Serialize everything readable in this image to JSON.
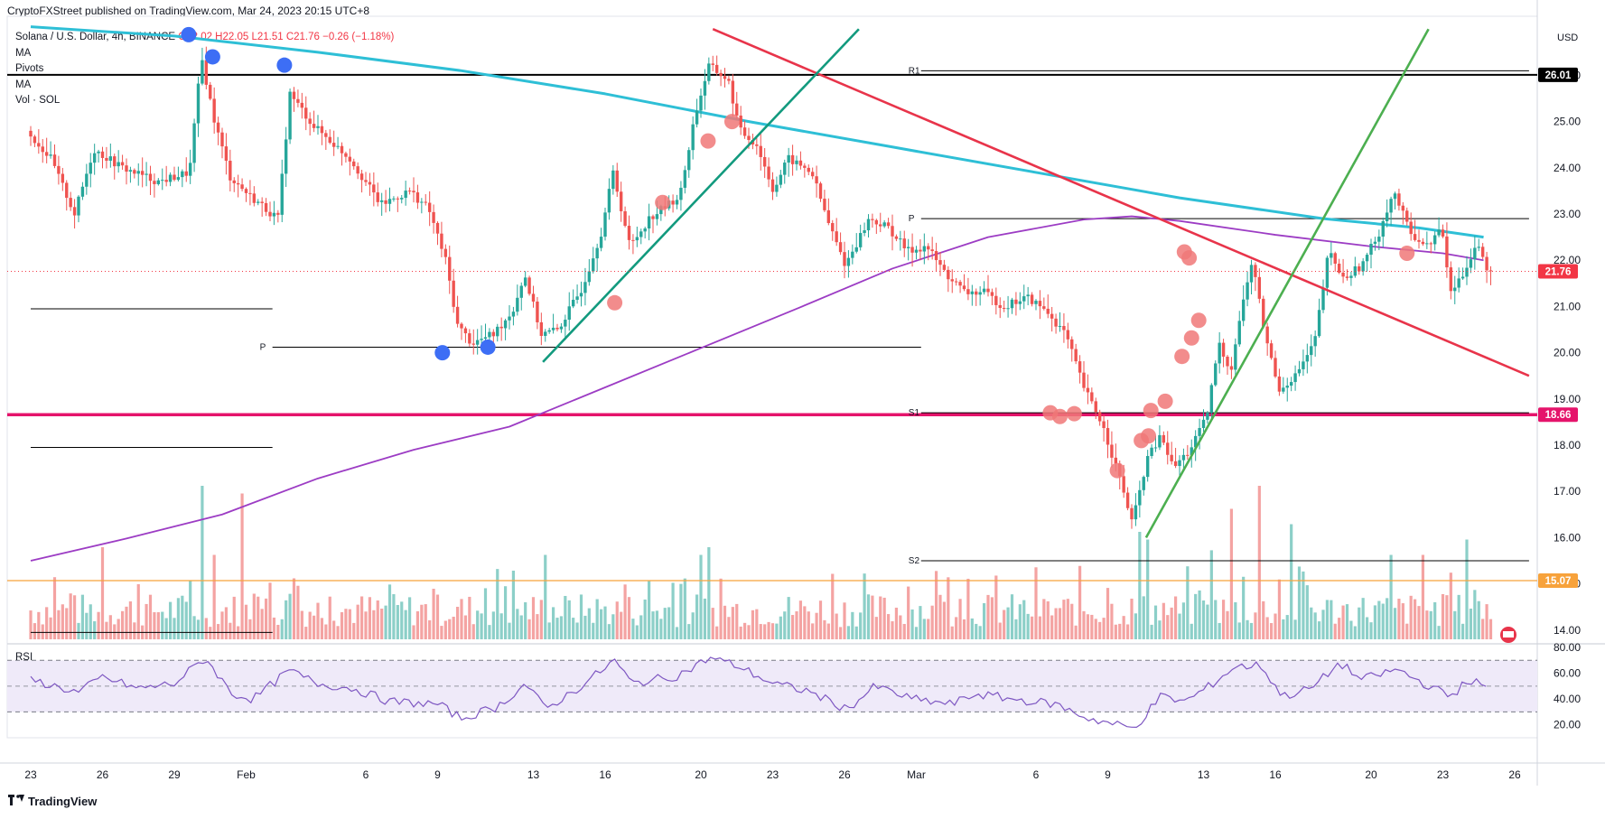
{
  "header": {
    "publisher": "CryptoFXStreet published on TradingView.com, Mar 24, 2023 20:15 UTC+8"
  },
  "legend": {
    "symbol": "Solana / U.S. Dollar, 4h, BINANCE",
    "ohlc": "O22.02  H22.05  L21.51  C21.76  −0.26 (−1.18%)",
    "indicators": [
      "MA",
      "Pivots",
      "MA",
      "Vol · SOL"
    ]
  },
  "branding": {
    "logo_text": "TradingView"
  },
  "colors": {
    "up": "#26a69a",
    "down": "#ef5350",
    "vol_up": "#8ccfc8",
    "vol_down": "#f4a3a2",
    "ma_cyan": "#2ebfd6",
    "ma_purple": "#9c3cc4",
    "trend_red": "#e8344a",
    "trend_green_teal": "#129a7e",
    "trend_green": "#4caf50",
    "support_magenta": "#e5146b",
    "level_orange": "#f7a23b",
    "marker_blue": "#3d6ef5",
    "marker_red": "#f07878",
    "rsi_line": "#7e57c2",
    "rsi_band": "#efeaf9"
  },
  "chart_data": {
    "type": "candlestick",
    "interval": "4h",
    "currency": "USD",
    "last_price": 21.76,
    "ylim": [
      13.8,
      27.2
    ],
    "y_ticks": [
      14,
      15,
      16,
      17,
      18,
      19,
      20,
      21,
      22,
      23,
      24,
      25,
      26
    ],
    "x_ticks": [
      {
        "label": "23",
        "t": 0
      },
      {
        "label": "26",
        "t": 3
      },
      {
        "label": "29",
        "t": 6
      },
      {
        "label": "Feb",
        "t": 9
      },
      {
        "label": "6",
        "t": 14
      },
      {
        "label": "9",
        "t": 17
      },
      {
        "label": "13",
        "t": 21
      },
      {
        "label": "16",
        "t": 24
      },
      {
        "label": "20",
        "t": 28
      },
      {
        "label": "23",
        "t": 31
      },
      {
        "label": "26",
        "t": 34
      },
      {
        "label": "Mar",
        "t": 37
      },
      {
        "label": "6",
        "t": 42
      },
      {
        "label": "9",
        "t": 45
      },
      {
        "label": "13",
        "t": 49
      },
      {
        "label": "16",
        "t": 52
      },
      {
        "label": "20",
        "t": 56
      },
      {
        "label": "23",
        "t": 59
      },
      {
        "label": "26",
        "t": 62
      }
    ],
    "price_labels": [
      {
        "value": 26.01,
        "text": "26.01",
        "color": "#000000"
      },
      {
        "value": 21.76,
        "text": "21.76",
        "color": "#f23645"
      },
      {
        "value": 18.66,
        "text": "18.66",
        "color": "#e5146b"
      },
      {
        "value": 15.07,
        "text": "15.07",
        "color": "#f7a23b"
      }
    ],
    "horizontal_levels": [
      {
        "value": 26.01,
        "color": "#000000",
        "width": 2
      },
      {
        "value": 18.66,
        "color": "#e5146b",
        "width": 3.5
      },
      {
        "value": 15.07,
        "color": "#f7a23b",
        "width": 1.2
      }
    ],
    "pivots": [
      {
        "label": "R1",
        "value": 26.1,
        "t_start": 37.2,
        "t_end": 62.6
      },
      {
        "label": "P",
        "value": 22.9,
        "t_start": 37.2,
        "t_end": 62.6
      },
      {
        "label": "S1",
        "value": 18.7,
        "t_start": 37.2,
        "t_end": 62.6
      },
      {
        "label": "S2",
        "value": 15.5,
        "t_start": 37.2,
        "t_end": 62.6
      },
      {
        "label": "",
        "value": 20.95,
        "t_start": 0,
        "t_end": 10.1
      },
      {
        "label": "P",
        "value": 20.12,
        "t_start": 10.1,
        "t_end": 37.2
      },
      {
        "label": "",
        "value": 17.95,
        "t_start": 0,
        "t_end": 10.1
      },
      {
        "label": "",
        "value": 13.95,
        "t_start": 0,
        "t_end": 10.1
      }
    ],
    "trendlines": [
      {
        "color": "#e8344a",
        "t1": 28.5,
        "p1": 27.0,
        "t2": 62.6,
        "p2": 19.5
      },
      {
        "color": "#129a7e",
        "t1": 21.4,
        "p1": 19.8,
        "t2": 34.6,
        "p2": 27.0
      },
      {
        "color": "#4caf50",
        "t1": 46.6,
        "p1": 16.0,
        "t2": 58.4,
        "p2": 27.0
      }
    ],
    "ma_cyan": [
      {
        "t": 0,
        "p": 27.05
      },
      {
        "t": 6,
        "p": 26.85
      },
      {
        "t": 12,
        "p": 26.5
      },
      {
        "t": 18,
        "p": 26.1
      },
      {
        "t": 24,
        "p": 25.6
      },
      {
        "t": 30,
        "p": 25.0
      },
      {
        "t": 36,
        "p": 24.45
      },
      {
        "t": 42,
        "p": 23.9
      },
      {
        "t": 48,
        "p": 23.35
      },
      {
        "t": 54,
        "p": 22.9
      },
      {
        "t": 58,
        "p": 22.7
      },
      {
        "t": 60.7,
        "p": 22.5
      }
    ],
    "ma_purple": [
      {
        "t": 0,
        "p": 15.5
      },
      {
        "t": 4,
        "p": 15.98
      },
      {
        "t": 8,
        "p": 16.5
      },
      {
        "t": 12,
        "p": 17.28
      },
      {
        "t": 16,
        "p": 17.9
      },
      {
        "t": 20,
        "p": 18.4
      },
      {
        "t": 24,
        "p": 19.25
      },
      {
        "t": 28,
        "p": 20.1
      },
      {
        "t": 32,
        "p": 20.95
      },
      {
        "t": 36,
        "p": 21.82
      },
      {
        "t": 40,
        "p": 22.5
      },
      {
        "t": 44,
        "p": 22.88
      },
      {
        "t": 46,
        "p": 22.95
      },
      {
        "t": 48,
        "p": 22.85
      },
      {
        "t": 52,
        "p": 22.55
      },
      {
        "t": 56,
        "p": 22.3
      },
      {
        "t": 59,
        "p": 22.15
      },
      {
        "t": 60.7,
        "p": 22.0
      }
    ],
    "price_path": [
      {
        "t": 0,
        "p": 24.8
      },
      {
        "t": 1,
        "p": 24.2
      },
      {
        "t": 2,
        "p": 23.0
      },
      {
        "t": 2.8,
        "p": 24.4
      },
      {
        "t": 4,
        "p": 24.0
      },
      {
        "t": 5.5,
        "p": 23.7
      },
      {
        "t": 6.8,
        "p": 23.9
      },
      {
        "t": 7.3,
        "p": 26.4
      },
      {
        "t": 7.8,
        "p": 25.1
      },
      {
        "t": 8.5,
        "p": 23.8
      },
      {
        "t": 9.3,
        "p": 23.4
      },
      {
        "t": 10.5,
        "p": 22.9
      },
      {
        "t": 11.0,
        "p": 25.6
      },
      {
        "t": 12.0,
        "p": 24.9
      },
      {
        "t": 13.5,
        "p": 24.2
      },
      {
        "t": 14.8,
        "p": 23.2
      },
      {
        "t": 16.0,
        "p": 23.5
      },
      {
        "t": 16.8,
        "p": 23.1
      },
      {
        "t": 17.5,
        "p": 22.0
      },
      {
        "t": 18.0,
        "p": 20.6
      },
      {
        "t": 18.6,
        "p": 20.2
      },
      {
        "t": 19.5,
        "p": 20.4
      },
      {
        "t": 20.3,
        "p": 20.9
      },
      {
        "t": 20.8,
        "p": 21.7
      },
      {
        "t": 21.5,
        "p": 20.4
      },
      {
        "t": 22.2,
        "p": 20.5
      },
      {
        "t": 23.2,
        "p": 21.4
      },
      {
        "t": 24.0,
        "p": 22.6
      },
      {
        "t": 24.5,
        "p": 23.9
      },
      {
        "t": 25.2,
        "p": 22.3
      },
      {
        "t": 26.0,
        "p": 22.9
      },
      {
        "t": 27.3,
        "p": 23.4
      },
      {
        "t": 27.9,
        "p": 25.1
      },
      {
        "t": 28.5,
        "p": 26.2
      },
      {
        "t": 29.3,
        "p": 25.9
      },
      {
        "t": 29.8,
        "p": 24.8
      },
      {
        "t": 30.5,
        "p": 24.5
      },
      {
        "t": 31.2,
        "p": 23.5
      },
      {
        "t": 31.8,
        "p": 24.2
      },
      {
        "t": 32.8,
        "p": 23.9
      },
      {
        "t": 33.5,
        "p": 22.8
      },
      {
        "t": 34.2,
        "p": 21.9
      },
      {
        "t": 35.2,
        "p": 22.9
      },
      {
        "t": 36.0,
        "p": 22.7
      },
      {
        "t": 36.8,
        "p": 22.2
      },
      {
        "t": 37.6,
        "p": 22.3
      },
      {
        "t": 38.4,
        "p": 21.7
      },
      {
        "t": 39.2,
        "p": 21.3
      },
      {
        "t": 40.0,
        "p": 21.3
      },
      {
        "t": 40.8,
        "p": 21.0
      },
      {
        "t": 41.8,
        "p": 21.2
      },
      {
        "t": 42.6,
        "p": 20.9
      },
      {
        "t": 43.4,
        "p": 20.4
      },
      {
        "t": 44.2,
        "p": 19.2
      },
      {
        "t": 44.9,
        "p": 18.5
      },
      {
        "t": 45.6,
        "p": 17.4
      },
      {
        "t": 46.2,
        "p": 16.3
      },
      {
        "t": 46.8,
        "p": 17.7
      },
      {
        "t": 47.4,
        "p": 18.2
      },
      {
        "t": 47.9,
        "p": 17.5
      },
      {
        "t": 48.6,
        "p": 17.9
      },
      {
        "t": 49.3,
        "p": 18.6
      },
      {
        "t": 49.8,
        "p": 20.2
      },
      {
        "t": 50.3,
        "p": 19.6
      },
      {
        "t": 50.7,
        "p": 20.8
      },
      {
        "t": 51.2,
        "p": 22.0
      },
      {
        "t": 51.7,
        "p": 20.5
      },
      {
        "t": 52.3,
        "p": 19.2
      },
      {
        "t": 53.0,
        "p": 19.5
      },
      {
        "t": 53.8,
        "p": 20.2
      },
      {
        "t": 54.4,
        "p": 22.2
      },
      {
        "t": 55.0,
        "p": 21.6
      },
      {
        "t": 55.8,
        "p": 21.9
      },
      {
        "t": 56.5,
        "p": 22.6
      },
      {
        "t": 57.1,
        "p": 23.5
      },
      {
        "t": 57.8,
        "p": 22.6
      },
      {
        "t": 58.5,
        "p": 22.3
      },
      {
        "t": 59.1,
        "p": 22.7
      },
      {
        "t": 59.5,
        "p": 21.3
      },
      {
        "t": 60.0,
        "p": 21.7
      },
      {
        "t": 60.6,
        "p": 22.4
      },
      {
        "t": 61.0,
        "p": 21.76
      }
    ],
    "volume_spikes": [
      {
        "t": 7.2,
        "v": 1.0
      },
      {
        "t": 8.9,
        "v": 0.95
      },
      {
        "t": 7.6,
        "v": 0.55
      },
      {
        "t": 3.0,
        "v": 0.6
      },
      {
        "t": 21.5,
        "v": 0.55
      },
      {
        "t": 28.0,
        "v": 0.55
      },
      {
        "t": 28.3,
        "v": 0.6
      },
      {
        "t": 46.3,
        "v": 0.7
      },
      {
        "t": 46.7,
        "v": 0.65
      },
      {
        "t": 50.1,
        "v": 0.85
      },
      {
        "t": 51.3,
        "v": 1.0
      },
      {
        "t": 52.6,
        "v": 0.75
      },
      {
        "t": 56.9,
        "v": 0.55
      },
      {
        "t": 58.2,
        "v": 0.55
      },
      {
        "t": 60.0,
        "v": 0.65
      },
      {
        "t": 49.3,
        "v": 0.58
      }
    ],
    "markers_blue": [
      {
        "t": 6.6,
        "p": 26.88
      },
      {
        "t": 7.6,
        "p": 26.4
      },
      {
        "t": 10.6,
        "p": 26.22
      },
      {
        "t": 17.2,
        "p": 20.0
      },
      {
        "t": 19.1,
        "p": 20.12
      }
    ],
    "markers_red": [
      {
        "t": 24.4,
        "p": 21.08
      },
      {
        "t": 26.4,
        "p": 23.25
      },
      {
        "t": 28.3,
        "p": 24.58
      },
      {
        "t": 29.3,
        "p": 25.0
      },
      {
        "t": 42.6,
        "p": 18.7
      },
      {
        "t": 43.0,
        "p": 18.62
      },
      {
        "t": 43.6,
        "p": 18.68
      },
      {
        "t": 45.4,
        "p": 17.45
      },
      {
        "t": 46.4,
        "p": 18.1
      },
      {
        "t": 46.7,
        "p": 18.2
      },
      {
        "t": 46.8,
        "p": 18.75
      },
      {
        "t": 47.4,
        "p": 18.95
      },
      {
        "t": 48.1,
        "p": 19.92
      },
      {
        "t": 48.5,
        "p": 20.32
      },
      {
        "t": 48.8,
        "p": 20.7
      },
      {
        "t": 48.2,
        "p": 22.18
      },
      {
        "t": 48.4,
        "p": 22.05
      },
      {
        "t": 57.5,
        "p": 22.15
      }
    ],
    "rsi": {
      "label": "RSI",
      "ylim": [
        10,
        80
      ],
      "y_ticks": [
        20,
        40,
        60,
        80
      ],
      "band": [
        30,
        70
      ],
      "mid": 50,
      "series": [
        {
          "t": 0,
          "v": 55
        },
        {
          "t": 2,
          "v": 45
        },
        {
          "t": 3,
          "v": 57
        },
        {
          "t": 4.5,
          "v": 48
        },
        {
          "t": 6,
          "v": 52
        },
        {
          "t": 7.3,
          "v": 72
        },
        {
          "t": 8.4,
          "v": 44
        },
        {
          "t": 9.3,
          "v": 40
        },
        {
          "t": 10.8,
          "v": 62
        },
        {
          "t": 12,
          "v": 52
        },
        {
          "t": 13.5,
          "v": 48
        },
        {
          "t": 15,
          "v": 38
        },
        {
          "t": 17,
          "v": 36
        },
        {
          "t": 18,
          "v": 25
        },
        {
          "t": 19.5,
          "v": 34
        },
        {
          "t": 20.7,
          "v": 52
        },
        {
          "t": 21.5,
          "v": 32
        },
        {
          "t": 23,
          "v": 50
        },
        {
          "t": 24.4,
          "v": 70
        },
        {
          "t": 25.1,
          "v": 52
        },
        {
          "t": 27,
          "v": 58
        },
        {
          "t": 28.4,
          "v": 72
        },
        {
          "t": 29.5,
          "v": 66
        },
        {
          "t": 31,
          "v": 52
        },
        {
          "t": 32.5,
          "v": 46
        },
        {
          "t": 34.1,
          "v": 32
        },
        {
          "t": 35.3,
          "v": 50
        },
        {
          "t": 36.8,
          "v": 40
        },
        {
          "t": 38.5,
          "v": 36
        },
        {
          "t": 39.5,
          "v": 44
        },
        {
          "t": 41,
          "v": 40
        },
        {
          "t": 42.8,
          "v": 36
        },
        {
          "t": 44.2,
          "v": 25
        },
        {
          "t": 46.1,
          "v": 17
        },
        {
          "t": 47.2,
          "v": 42
        },
        {
          "t": 48.2,
          "v": 38
        },
        {
          "t": 49.1,
          "v": 48
        },
        {
          "t": 50.3,
          "v": 65
        },
        {
          "t": 51.4,
          "v": 66
        },
        {
          "t": 52.3,
          "v": 42
        },
        {
          "t": 53.5,
          "v": 48
        },
        {
          "t": 54.7,
          "v": 68
        },
        {
          "t": 55.6,
          "v": 55
        },
        {
          "t": 57.1,
          "v": 63
        },
        {
          "t": 58,
          "v": 54
        },
        {
          "t": 59.3,
          "v": 42
        },
        {
          "t": 60.1,
          "v": 55
        },
        {
          "t": 61,
          "v": 48
        }
      ]
    }
  }
}
